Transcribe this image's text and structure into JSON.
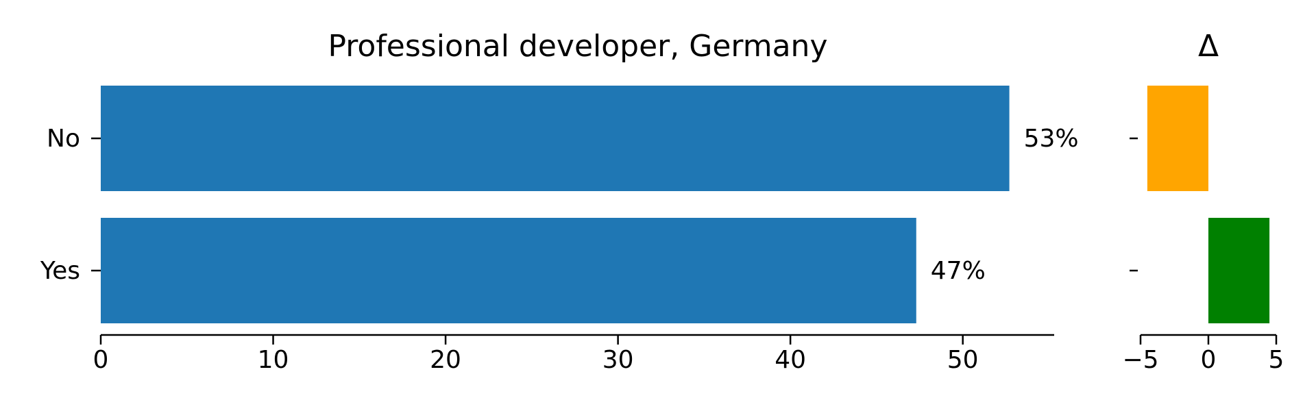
{
  "chart_data": [
    {
      "type": "bar",
      "orientation": "horizontal",
      "title": "Professional developer, Germany",
      "categories": [
        "No",
        "Yes"
      ],
      "values": [
        52.7,
        47.3
      ],
      "data_labels": [
        "53%",
        "47%"
      ],
      "xlim": [
        0,
        55.3
      ],
      "xticks": [
        0,
        10,
        20,
        30,
        40,
        50
      ],
      "xtick_labels": [
        "0",
        "10",
        "20",
        "30",
        "40",
        "50"
      ],
      "color": "#1f77b4",
      "grid": false,
      "legend": "none"
    },
    {
      "type": "bar",
      "orientation": "horizontal",
      "title": "Δ",
      "categories": [
        "No",
        "Yes"
      ],
      "values": [
        -4.5,
        4.5
      ],
      "colors": [
        "#ffa500",
        "#008000"
      ],
      "xlim": [
        -5,
        5
      ],
      "xticks": [
        -5,
        0,
        5
      ],
      "xtick_labels": [
        "−5",
        "0",
        "5"
      ],
      "grid": false,
      "legend": "none"
    }
  ]
}
